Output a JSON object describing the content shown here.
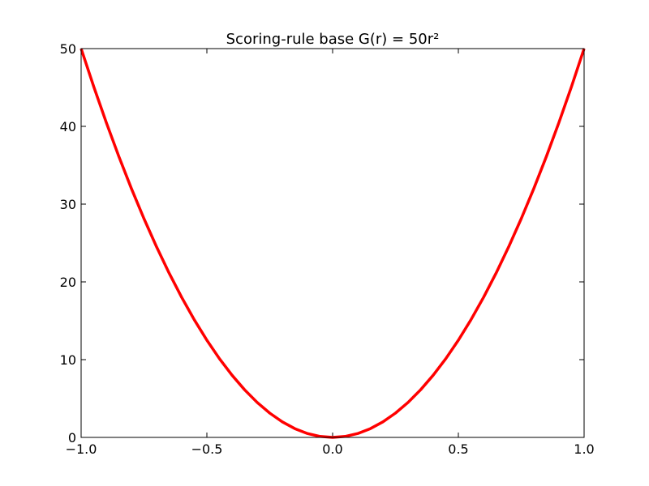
{
  "chart_data": {
    "type": "line",
    "title": "Scoring-rule base G(r) = 50r²",
    "x": [
      -1,
      -0.95,
      -0.9,
      -0.85,
      -0.8,
      -0.75,
      -0.7,
      -0.65,
      -0.6,
      -0.55,
      -0.5,
      -0.45,
      -0.4,
      -0.35,
      -0.3,
      -0.25,
      -0.2,
      -0.15,
      -0.1,
      -0.05,
      0,
      0.05,
      0.1,
      0.15,
      0.2,
      0.25,
      0.3,
      0.35,
      0.4,
      0.45,
      0.5,
      0.55,
      0.6,
      0.65,
      0.7,
      0.75,
      0.8,
      0.85,
      0.9,
      0.95,
      1
    ],
    "series": [
      {
        "name": "G(r)",
        "color": "#ff0000",
        "values": [
          50,
          45.125,
          40.5,
          36.125,
          32,
          28.125,
          24.5,
          21.125,
          18,
          15.125,
          12.5,
          10.125,
          8,
          6.125,
          4.5,
          3.125,
          2,
          1.125,
          0.5,
          0.125,
          0,
          0.125,
          0.5,
          1.125,
          2,
          3.125,
          4.5,
          6.125,
          8,
          10.125,
          12.5,
          15.125,
          18,
          21.125,
          24.5,
          28.125,
          32,
          36.125,
          40.5,
          45.125,
          50
        ]
      }
    ],
    "xlim": [
      -1,
      1
    ],
    "xticks": [
      {
        "value": -1,
        "label": "−1.0"
      },
      {
        "value": -0.5,
        "label": "−0.5"
      },
      {
        "value": 0,
        "label": "0.0"
      },
      0.5,
      {
        "value": 1,
        "label": "1.0"
      }
    ],
    "ylim": [
      0,
      50
    ],
    "yticks": [
      0,
      10,
      20,
      30,
      40,
      50
    ],
    "grid": false
  }
}
